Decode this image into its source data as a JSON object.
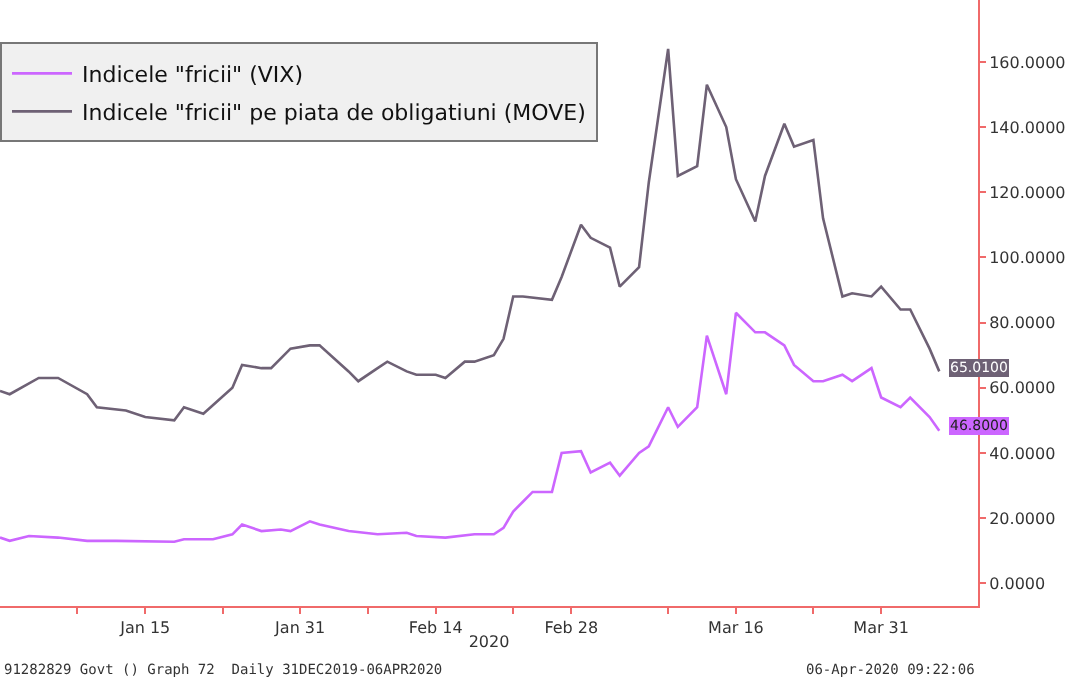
{
  "chart_data": {
    "type": "line",
    "xlabel": "2020",
    "series": [
      {
        "name": "Indicele \"fricii\" (VIX)",
        "color": "#cc66ff",
        "x": [
          "2019-12-31",
          "2020-01-01",
          "2020-01-03",
          "2020-01-06",
          "2020-01-09",
          "2020-01-12",
          "2020-01-18",
          "2020-01-19",
          "2020-01-22",
          "2020-01-24",
          "2020-01-25",
          "2020-01-27",
          "2020-01-29",
          "2020-01-30",
          "2020-02-01",
          "2020-02-02",
          "2020-02-05",
          "2020-02-08",
          "2020-02-11",
          "2020-02-12",
          "2020-02-15",
          "2020-02-18",
          "2020-02-20",
          "2020-02-21",
          "2020-02-22",
          "2020-02-23",
          "2020-02-24",
          "2020-02-26",
          "2020-02-27",
          "2020-02-29",
          "2020-03-01",
          "2020-03-03",
          "2020-03-04",
          "2020-03-06",
          "2020-03-07",
          "2020-03-09",
          "2020-03-10",
          "2020-03-12",
          "2020-03-13",
          "2020-03-15",
          "2020-03-16",
          "2020-03-18",
          "2020-03-19",
          "2020-03-21",
          "2020-03-22",
          "2020-03-24",
          "2020-03-25",
          "2020-03-27",
          "2020-03-28",
          "2020-03-30",
          "2020-03-31",
          "2020-04-02",
          "2020-04-03",
          "2020-04-05",
          "2020-04-06"
        ],
        "values": [
          14,
          13,
          14.5,
          14,
          13,
          13,
          12.7,
          13.5,
          13.5,
          15,
          18,
          16,
          16.5,
          16,
          19,
          18,
          16,
          15,
          15.5,
          14.5,
          14,
          15,
          15,
          17,
          22,
          25,
          28,
          28,
          40,
          40.5,
          34,
          37,
          33,
          40,
          42,
          54,
          48,
          54,
          76,
          58,
          83,
          77,
          77,
          73,
          67,
          62,
          62,
          64,
          62,
          66,
          57,
          54,
          57,
          51,
          46.8
        ]
      },
      {
        "name": "Indicele \"fricii\" pe piata de obligatiuni (MOVE)",
        "color": "#6e6175",
        "x": [
          "2019-12-31",
          "2020-01-01",
          "2020-01-04",
          "2020-01-06",
          "2020-01-09",
          "2020-01-10",
          "2020-01-13",
          "2020-01-15",
          "2020-01-18",
          "2020-01-19",
          "2020-01-21",
          "2020-01-24",
          "2020-01-25",
          "2020-01-27",
          "2020-01-28",
          "2020-01-30",
          "2020-02-01",
          "2020-02-02",
          "2020-02-05",
          "2020-02-06",
          "2020-02-08",
          "2020-02-09",
          "2020-02-11",
          "2020-02-12",
          "2020-02-14",
          "2020-02-15",
          "2020-02-17",
          "2020-02-18",
          "2020-02-20",
          "2020-02-21",
          "2020-02-22",
          "2020-02-23",
          "2020-02-26",
          "2020-02-27",
          "2020-02-29",
          "2020-03-01",
          "2020-03-03",
          "2020-03-04",
          "2020-03-06",
          "2020-03-07",
          "2020-03-09",
          "2020-03-10",
          "2020-03-12",
          "2020-03-13",
          "2020-03-15",
          "2020-03-16",
          "2020-03-18",
          "2020-03-19",
          "2020-03-21",
          "2020-03-22",
          "2020-03-24",
          "2020-03-25",
          "2020-03-27",
          "2020-03-28",
          "2020-03-30",
          "2020-03-31",
          "2020-04-02",
          "2020-04-03",
          "2020-04-05",
          "2020-04-06"
        ],
        "values": [
          59,
          58,
          63,
          63,
          58,
          54,
          53,
          51,
          50,
          54,
          52,
          60,
          67,
          66,
          66,
          72,
          73,
          73,
          65,
          62,
          66,
          68,
          65,
          64,
          64,
          63,
          68,
          68,
          70,
          75,
          88,
          88,
          87,
          94,
          110,
          106,
          103,
          91,
          97,
          123,
          164,
          125,
          128,
          153,
          140,
          124,
          111,
          125,
          141,
          134,
          136,
          112,
          88,
          89,
          88,
          91,
          84,
          84,
          72,
          65.01
        ]
      }
    ],
    "xlim": [
      "2019-12-31",
      "2020-04-10"
    ],
    "xticks": [
      {
        "value": "2020-01-08",
        "label": null
      },
      {
        "value": "2020-01-15",
        "label": "Jan 15"
      },
      {
        "value": "2020-01-23",
        "label": null
      },
      {
        "value": "2020-01-31",
        "label": "Jan 31"
      },
      {
        "value": "2020-02-07",
        "label": null
      },
      {
        "value": "2020-02-14",
        "label": "Feb 14"
      },
      {
        "value": "2020-02-22",
        "label": null
      },
      {
        "value": "2020-02-28",
        "label": "Feb 28"
      },
      {
        "value": "2020-03-09",
        "label": null
      },
      {
        "value": "2020-03-16",
        "label": "Mar 16"
      },
      {
        "value": "2020-03-24",
        "label": null
      },
      {
        "value": "2020-03-31",
        "label": "Mar 31"
      }
    ],
    "ylim": [
      -7,
      179
    ],
    "yticks": [
      {
        "value": 0,
        "label": "0.0000"
      },
      {
        "value": 20,
        "label": "20.0000"
      },
      {
        "value": 40,
        "label": "40.0000"
      },
      {
        "value": 60,
        "label": "60.0000"
      },
      {
        "value": 80,
        "label": "80.0000"
      },
      {
        "value": 100,
        "label": "100.0000"
      },
      {
        "value": 120,
        "label": "120.0000"
      },
      {
        "value": 140,
        "label": "140.0000"
      },
      {
        "value": 160,
        "label": "160.0000"
      }
    ],
    "annotations": [
      {
        "text": "65.0100",
        "x": "2020-04-06",
        "y": 65.01
      },
      {
        "text": "46.8000",
        "x": "2020-04-06",
        "y": 46.8
      },
      "91282829 Govt () Graph 72  Daily 31DEC2019-06APR2020",
      "06-Apr-2020 09:22:06"
    ],
    "legend": "top left",
    "marker": "none",
    "line_style": "solid"
  }
}
